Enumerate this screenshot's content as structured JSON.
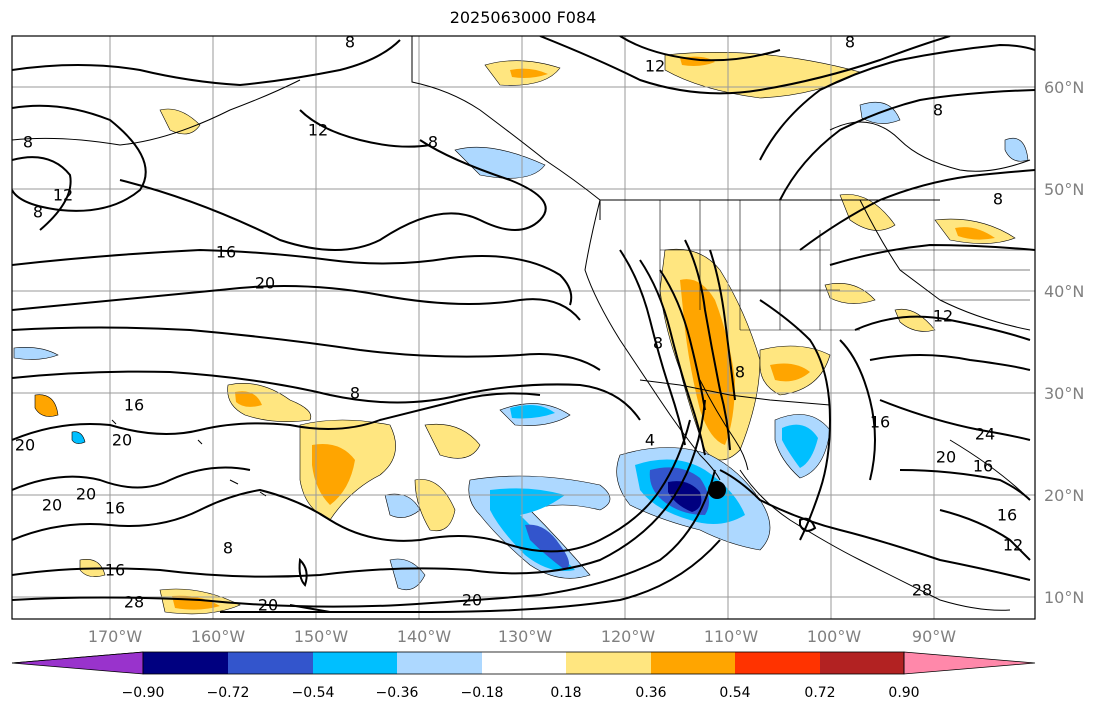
{
  "title": "2025063000 F084",
  "map": {
    "lon_ticks": [
      "170°W",
      "160°W",
      "150°W",
      "140°W",
      "130°W",
      "120°W",
      "110°W",
      "100°W",
      "90°W"
    ],
    "lat_ticks": [
      "60°N",
      "50°N",
      "40°N",
      "30°N",
      "20°N",
      "10°N"
    ],
    "contour_labels": [
      "8",
      "12",
      "16",
      "20",
      "24",
      "28"
    ],
    "marker": "storm-center-dot"
  },
  "colorbar": {
    "ticks": [
      "−0.90",
      "−0.72",
      "−0.54",
      "−0.36",
      "−0.18",
      "0.18",
      "0.36",
      "0.54",
      "0.72",
      "0.90"
    ],
    "colors": [
      "#9933cc",
      "#000080",
      "#3355cc",
      "#00bfff",
      "#add8ff",
      "#ffffff",
      "#ffe680",
      "#ffa500",
      "#ff3300",
      "#b22222",
      "#ff88aa"
    ]
  }
}
